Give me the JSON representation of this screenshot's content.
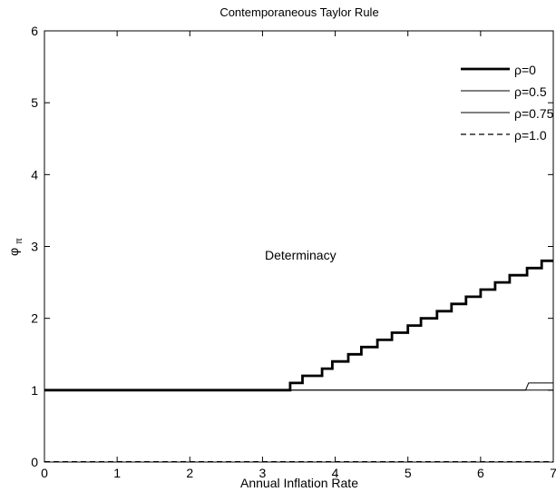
{
  "chart_data": {
    "type": "line",
    "title": "Contemporaneous Taylor Rule",
    "xlabel": "Annual Inflation Rate",
    "ylabel_main": "φ",
    "ylabel_sub": "π",
    "xlim": [
      0,
      7
    ],
    "ylim": [
      0,
      6
    ],
    "xticks": [
      0,
      1,
      2,
      3,
      4,
      5,
      6,
      7
    ],
    "yticks": [
      0,
      1,
      2,
      3,
      4,
      5,
      6
    ],
    "grid": false,
    "legend_position": "top-right",
    "annotations": [
      {
        "text": "Determinacy",
        "x": 3.85,
        "y": 2.4
      }
    ],
    "series": [
      {
        "name": "ρ=0",
        "style": "solid-thick",
        "x": [
          0,
          3.38,
          3.38,
          3.55,
          3.55,
          3.82,
          3.82,
          3.96,
          3.96,
          4.18,
          4.18,
          4.36,
          4.36,
          4.58,
          4.58,
          4.78,
          4.78,
          5.0,
          5.0,
          5.18,
          5.18,
          5.4,
          5.4,
          5.6,
          5.6,
          5.8,
          5.8,
          6.0,
          6.0,
          6.2,
          6.2,
          6.4,
          6.4,
          6.64,
          6.64,
          6.84,
          6.84,
          7.0
        ],
        "y": [
          1.0,
          1.0,
          1.1,
          1.1,
          1.2,
          1.2,
          1.3,
          1.3,
          1.4,
          1.4,
          1.5,
          1.5,
          1.6,
          1.6,
          1.7,
          1.7,
          1.8,
          1.8,
          1.9,
          1.9,
          2.0,
          2.0,
          2.1,
          2.1,
          2.2,
          2.2,
          2.3,
          2.3,
          2.4,
          2.4,
          2.5,
          2.5,
          2.6,
          2.6,
          2.7,
          2.7,
          2.8,
          2.8
        ]
      },
      {
        "name": "ρ=0.5",
        "style": "solid-thin",
        "x": [
          0,
          6.62,
          6.66,
          7.0
        ],
        "y": [
          1.0,
          1.0,
          1.1,
          1.1
        ]
      },
      {
        "name": "ρ=0.75",
        "style": "solid-thin",
        "x": [
          0,
          6.8,
          6.8,
          7.0
        ],
        "y": [
          1.0,
          1.0,
          1.0,
          1.0
        ]
      },
      {
        "name": "ρ=1.0",
        "style": "dashed",
        "x": [
          0,
          7.0
        ],
        "y": [
          0.005,
          0.005
        ]
      }
    ]
  },
  "colors": {
    "line": "#000000",
    "background": "#ffffff"
  }
}
